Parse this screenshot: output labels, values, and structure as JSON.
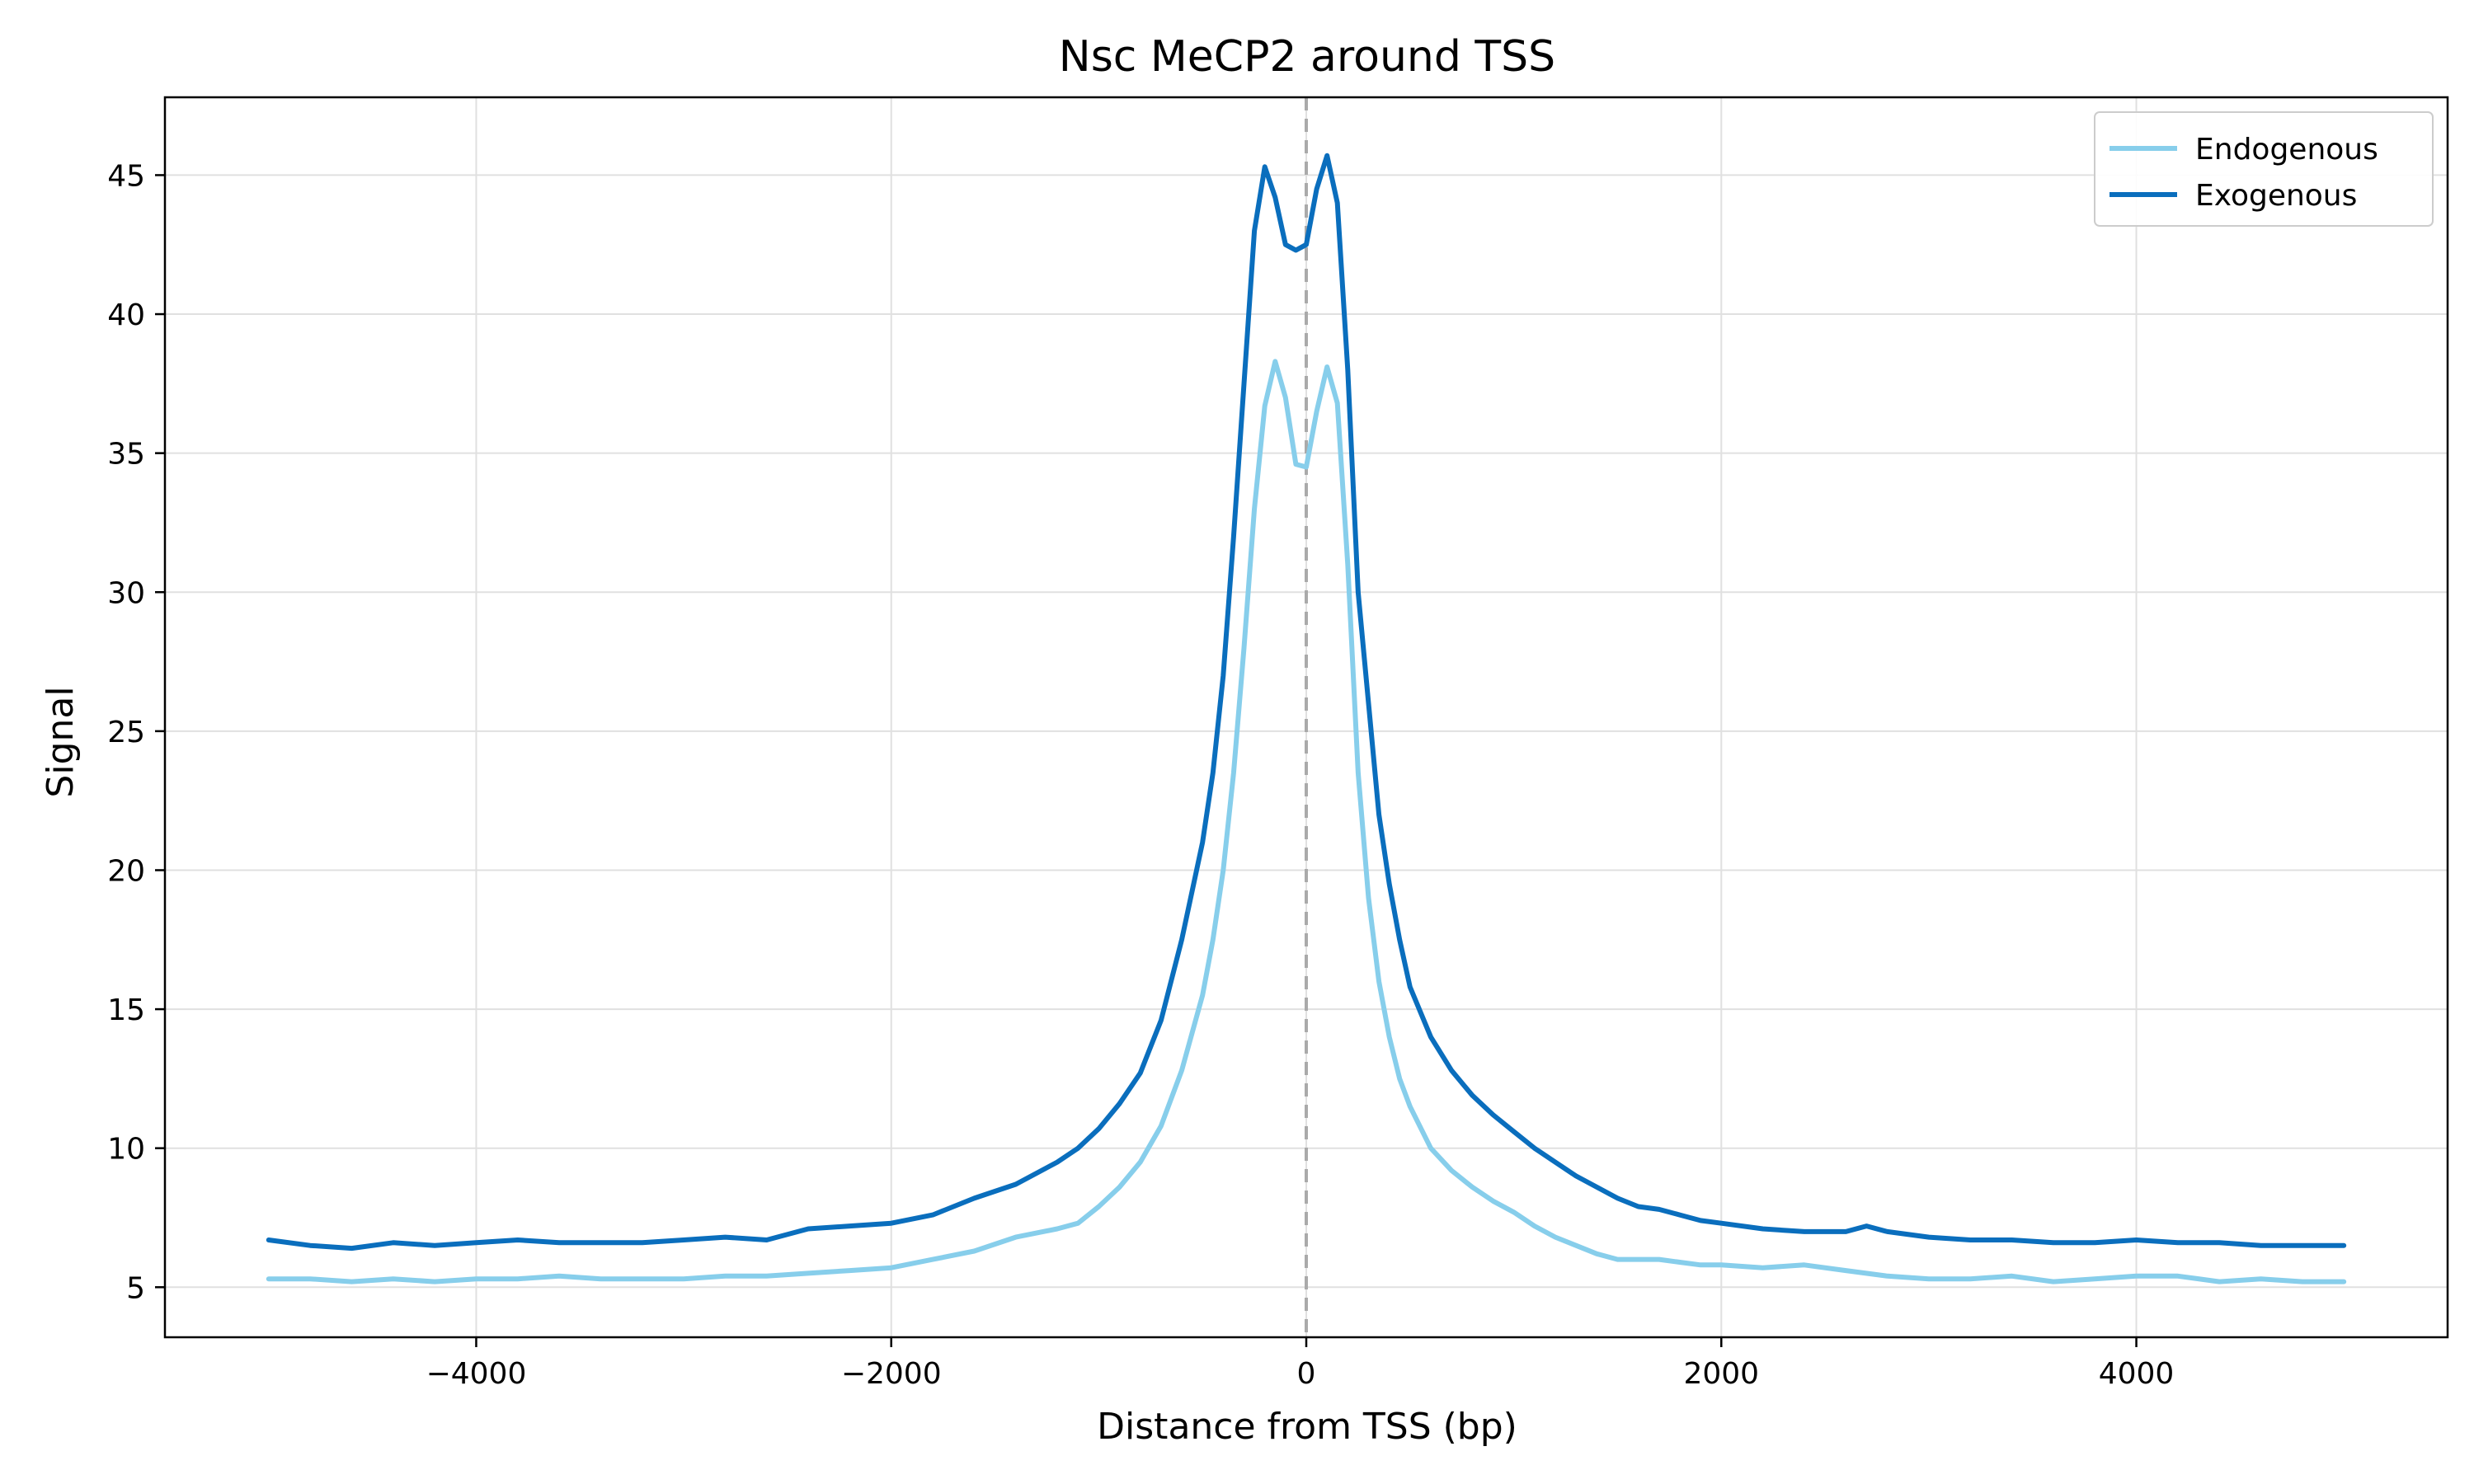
{
  "chart_data": {
    "type": "line",
    "title": "Nsc MeCP2 around TSS",
    "xlabel": "Distance from TSS (bp)",
    "ylabel": "Signal",
    "xlim": [
      -5500,
      5500
    ],
    "ylim": [
      3.2,
      47.8
    ],
    "xticks": [
      -4000,
      -2000,
      0,
      2000,
      4000
    ],
    "xtick_labels": [
      "−4000",
      "−2000",
      "0",
      "2000",
      "4000"
    ],
    "yticks": [
      5,
      10,
      15,
      20,
      25,
      30,
      35,
      40,
      45
    ],
    "yticks_labels": [
      "5",
      "10",
      "15",
      "20",
      "25",
      "30",
      "35",
      "40",
      "45"
    ],
    "grid": true,
    "legend": "top-right",
    "vline_x": 0,
    "vline_color": "#aaaaaa",
    "series": [
      {
        "name": "Endogenous",
        "color": "#87ceeb",
        "x": [
          -5000,
          -4800,
          -4600,
          -4400,
          -4200,
          -4000,
          -3800,
          -3600,
          -3400,
          -3200,
          -3000,
          -2800,
          -2600,
          -2400,
          -2200,
          -2000,
          -1800,
          -1600,
          -1400,
          -1200,
          -1100,
          -1000,
          -900,
          -800,
          -700,
          -600,
          -500,
          -450,
          -400,
          -350,
          -300,
          -250,
          -200,
          -150,
          -100,
          -50,
          0,
          50,
          100,
          150,
          200,
          250,
          300,
          350,
          400,
          450,
          500,
          600,
          700,
          800,
          900,
          1000,
          1100,
          1200,
          1300,
          1400,
          1500,
          1600,
          1700,
          1800,
          1900,
          2000,
          2200,
          2400,
          2600,
          2800,
          3000,
          3200,
          3400,
          3600,
          3800,
          4000,
          4200,
          4400,
          4600,
          4800,
          5000
        ],
        "y": [
          5.3,
          5.3,
          5.2,
          5.3,
          5.2,
          5.3,
          5.3,
          5.4,
          5.3,
          5.3,
          5.3,
          5.4,
          5.4,
          5.5,
          5.6,
          5.7,
          6.0,
          6.3,
          6.8,
          7.1,
          7.3,
          7.9,
          8.6,
          9.5,
          10.8,
          12.8,
          15.5,
          17.5,
          20.0,
          23.5,
          28.0,
          33.0,
          36.7,
          38.3,
          37.0,
          34.6,
          34.5,
          36.5,
          38.1,
          36.8,
          31.0,
          23.5,
          19.0,
          16.0,
          14.0,
          12.5,
          11.5,
          10.0,
          9.2,
          8.6,
          8.1,
          7.7,
          7.2,
          6.8,
          6.5,
          6.2,
          6.0,
          6.0,
          6.0,
          5.9,
          5.8,
          5.8,
          5.7,
          5.8,
          5.6,
          5.4,
          5.3,
          5.3,
          5.4,
          5.2,
          5.3,
          5.4,
          5.4,
          5.2,
          5.3,
          5.2,
          5.2
        ]
      },
      {
        "name": "Exogenous",
        "color": "#0a6ebd",
        "x": [
          -5000,
          -4800,
          -4600,
          -4400,
          -4200,
          -4000,
          -3800,
          -3600,
          -3400,
          -3200,
          -3000,
          -2800,
          -2600,
          -2400,
          -2200,
          -2000,
          -1800,
          -1600,
          -1400,
          -1200,
          -1100,
          -1000,
          -900,
          -800,
          -700,
          -600,
          -500,
          -450,
          -400,
          -350,
          -300,
          -250,
          -200,
          -150,
          -100,
          -50,
          0,
          50,
          100,
          150,
          200,
          250,
          300,
          350,
          400,
          450,
          500,
          600,
          700,
          800,
          900,
          1000,
          1100,
          1200,
          1300,
          1400,
          1500,
          1600,
          1700,
          1800,
          1900,
          2000,
          2200,
          2400,
          2600,
          2700,
          2800,
          3000,
          3200,
          3400,
          3600,
          3800,
          4000,
          4200,
          4400,
          4600,
          4800,
          5000
        ],
        "y": [
          6.7,
          6.5,
          6.4,
          6.6,
          6.5,
          6.6,
          6.7,
          6.6,
          6.6,
          6.6,
          6.7,
          6.8,
          6.7,
          7.1,
          7.2,
          7.3,
          7.6,
          8.2,
          8.7,
          9.5,
          10.0,
          10.7,
          11.6,
          12.7,
          14.6,
          17.5,
          21.0,
          23.5,
          27.0,
          32.0,
          37.5,
          43.0,
          45.3,
          44.2,
          42.5,
          42.3,
          42.5,
          44.5,
          45.7,
          44.0,
          38.0,
          30.0,
          26.0,
          22.0,
          19.5,
          17.5,
          15.8,
          14.0,
          12.8,
          11.9,
          11.2,
          10.6,
          10.0,
          9.5,
          9.0,
          8.6,
          8.2,
          7.9,
          7.8,
          7.6,
          7.4,
          7.3,
          7.1,
          7.0,
          7.0,
          7.2,
          7.0,
          6.8,
          6.7,
          6.7,
          6.6,
          6.6,
          6.7,
          6.6,
          6.6,
          6.5,
          6.5,
          6.5
        ]
      }
    ]
  }
}
